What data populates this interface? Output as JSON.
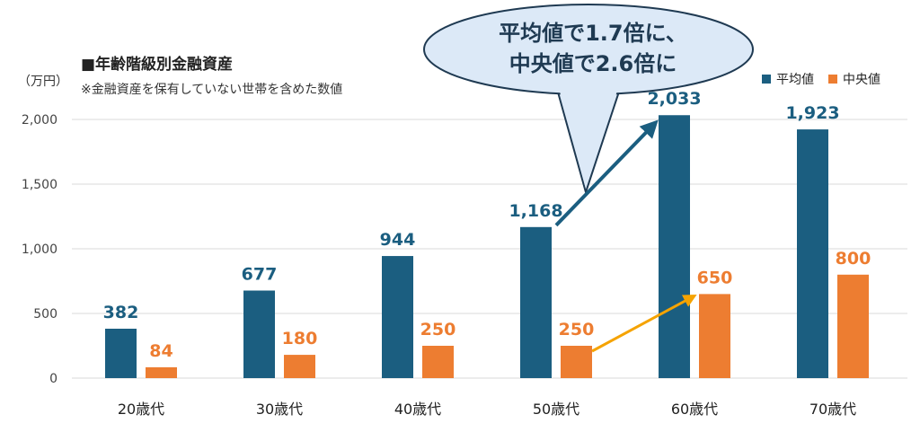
{
  "chart_data": {
    "type": "bar",
    "title": "■年齢階級別金融資産",
    "subtitle": "※金融資産を保有していない世帯を含めた数値",
    "unit_label": "（万円）",
    "categories": [
      "20歳代",
      "30歳代",
      "40歳代",
      "50歳代",
      "60歳代",
      "70歳代"
    ],
    "series": [
      {
        "name": "平均値",
        "values": [
          382,
          677,
          944,
          1168,
          2033,
          1923
        ],
        "color": "#1b5e80"
      },
      {
        "name": "中央値",
        "values": [
          84,
          180,
          250,
          250,
          650,
          800
        ],
        "color": "#ed7d31"
      }
    ],
    "data_labels": {
      "mean": [
        "382",
        "677",
        "944",
        "1,168",
        "2,033",
        "1,923"
      ],
      "median": [
        "84",
        "180",
        "250",
        "250",
        "650",
        "800"
      ]
    },
    "yticks": [
      "0",
      "500",
      "1,000",
      "1,500",
      "2,000"
    ],
    "ytick_values": [
      0,
      500,
      1000,
      1500,
      2000
    ],
    "ylim": [
      0,
      2000
    ],
    "grid": true,
    "legend_position": "top-right",
    "callout": {
      "line1": "平均値で1.7倍に、",
      "line2": "中央値で2.6倍に",
      "fill": "#dce9f7",
      "stroke": "#1f3a52"
    },
    "arrow_colors": {
      "mean": "#1b5e80",
      "median": "#f5a300"
    }
  }
}
